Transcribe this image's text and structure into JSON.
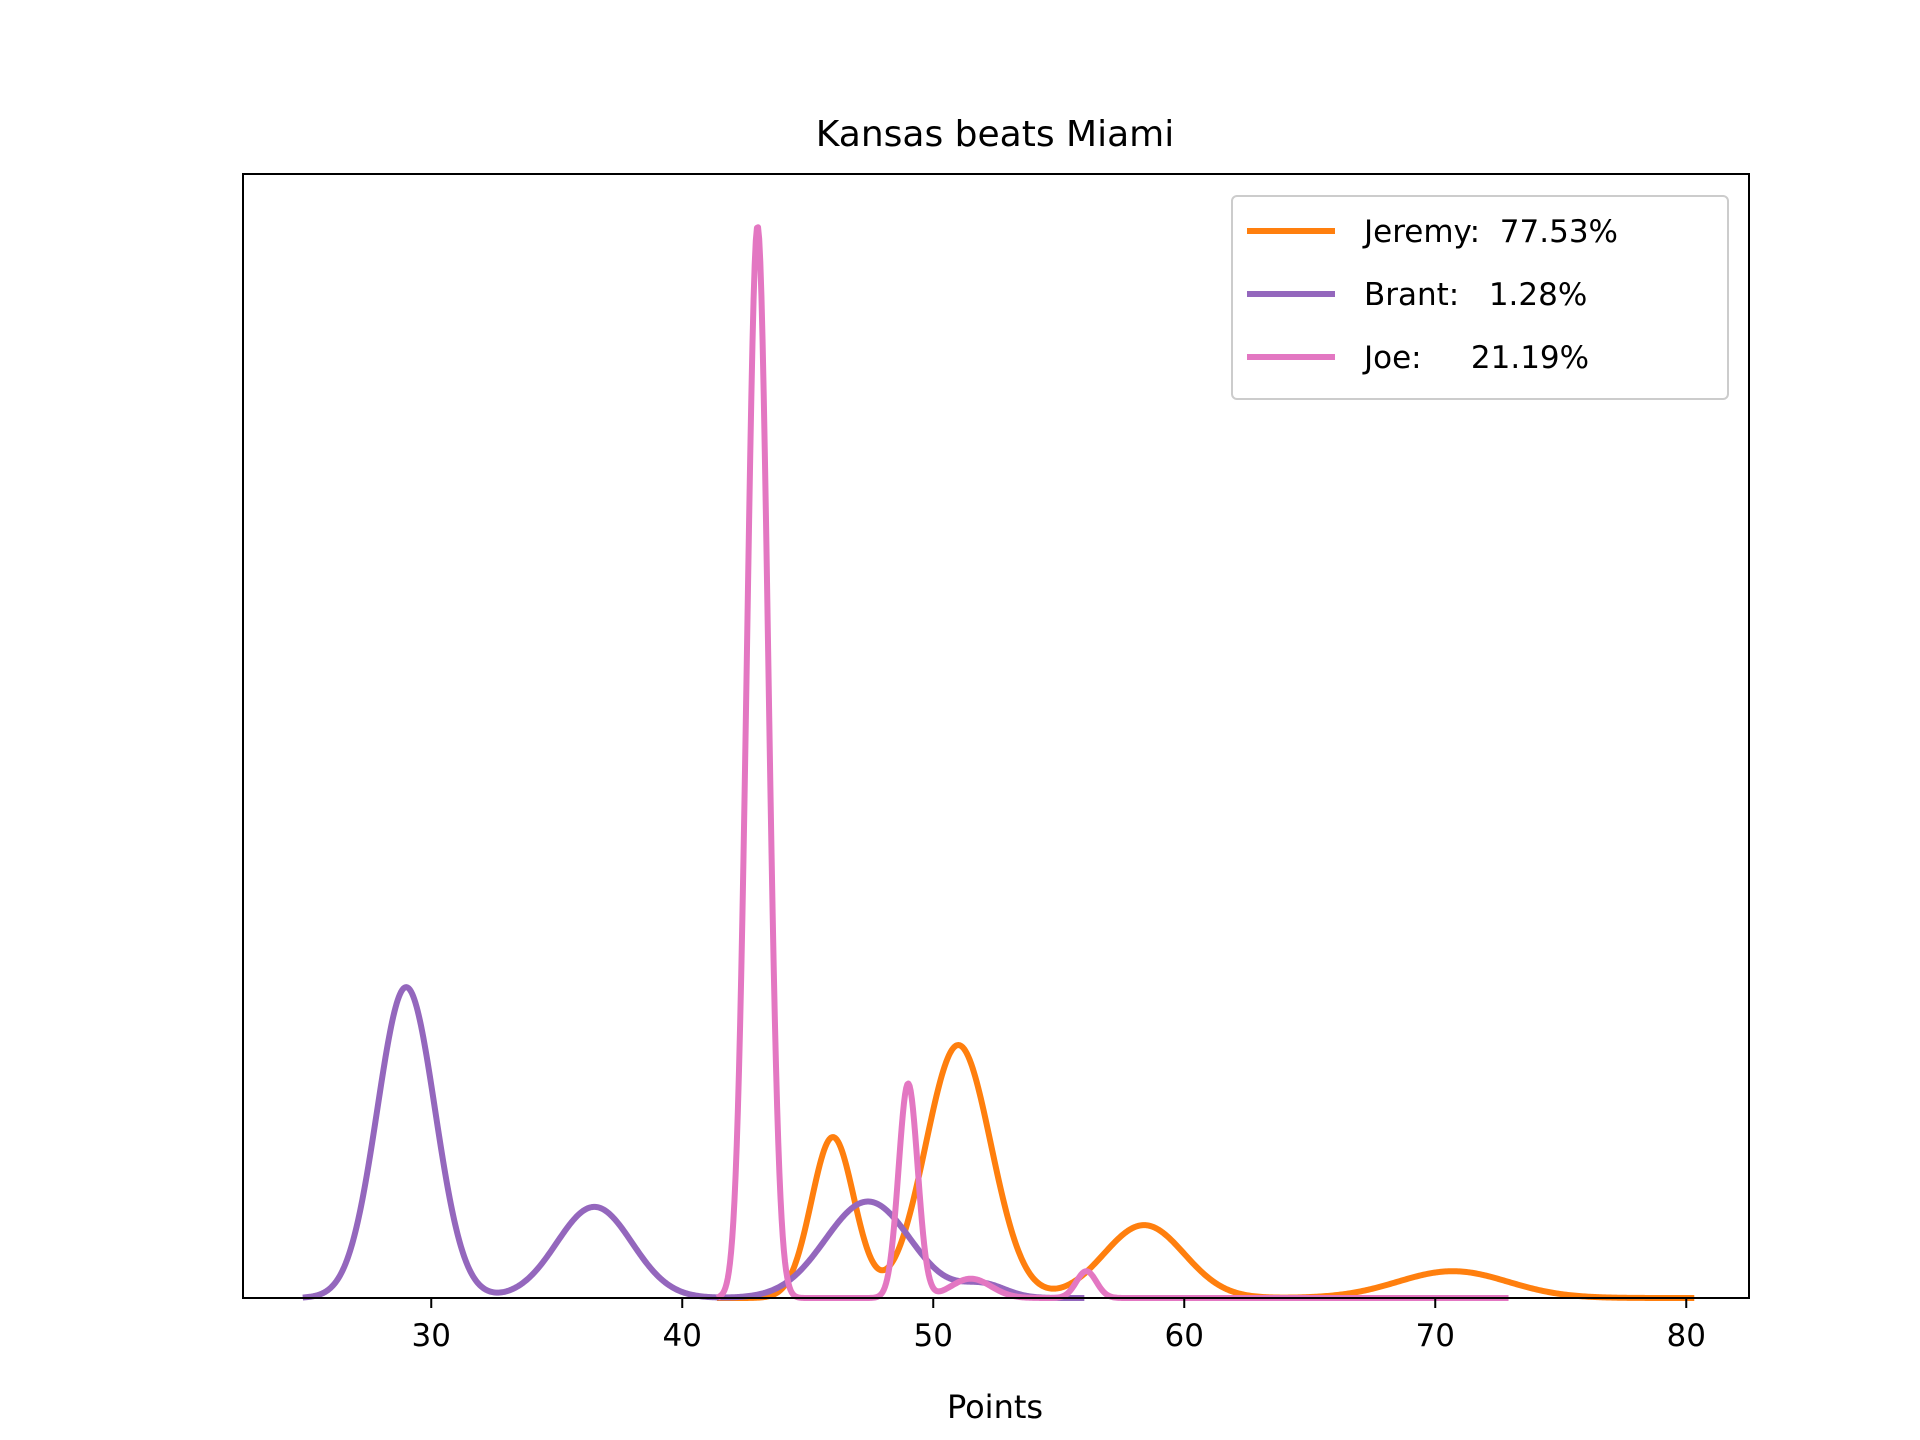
{
  "chart_data": {
    "type": "line",
    "title": "Kansas beats Miami",
    "xlabel": "Points",
    "ylabel": "",
    "xlim": [
      22.5,
      82.5
    ],
    "ylim": [
      0,
      1
    ],
    "xticks": [
      30,
      40,
      50,
      60,
      70,
      80
    ],
    "xtick_labels": [
      "30",
      "40",
      "50",
      "60",
      "70",
      "80"
    ],
    "yticks_shown": false,
    "grid": false,
    "legend_position": "top-right",
    "series": [
      {
        "name": "Jeremy",
        "legend_label": "Jeremy:  77.53%",
        "pct": "77.53%",
        "color": "#ff7f0e",
        "x_range": [
          41.5,
          80.2
        ],
        "peaks": [
          {
            "mu": 46.0,
            "sigma": 0.85,
            "amp": 0.15
          },
          {
            "mu": 51.0,
            "sigma": 1.3,
            "amp": 0.236
          },
          {
            "mu": 58.4,
            "sigma": 1.6,
            "amp": 0.068
          },
          {
            "mu": 70.7,
            "sigma": 2.2,
            "amp": 0.025
          }
        ]
      },
      {
        "name": "Brant",
        "legend_label": "Brant:   1.28%",
        "pct": "1.28%",
        "color": "#9467bd",
        "x_range": [
          25.0,
          55.9
        ],
        "peaks": [
          {
            "mu": 29.0,
            "sigma": 1.15,
            "amp": 0.29
          },
          {
            "mu": 36.5,
            "sigma": 1.5,
            "amp": 0.085
          },
          {
            "mu": 47.4,
            "sigma": 1.7,
            "amp": 0.09
          },
          {
            "mu": 52.0,
            "sigma": 0.9,
            "amp": 0.012
          }
        ]
      },
      {
        "name": "Joe",
        "legend_label": "Joe:     21.19%",
        "pct": "21.19%",
        "color": "#e377c2",
        "x_range": [
          41.5,
          72.8
        ],
        "peaks": [
          {
            "mu": 43.0,
            "sigma": 0.42,
            "amp": 1.0
          },
          {
            "mu": 49.0,
            "sigma": 0.38,
            "amp": 0.2
          },
          {
            "mu": 51.5,
            "sigma": 0.8,
            "amp": 0.018
          },
          {
            "mu": 56.1,
            "sigma": 0.4,
            "amp": 0.025
          }
        ]
      }
    ]
  }
}
